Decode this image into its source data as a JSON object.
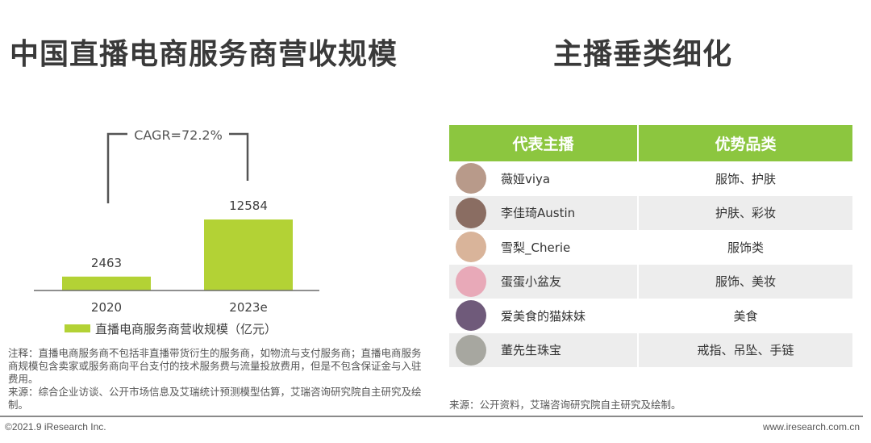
{
  "left_title": "中国直播电商服务商营收规模",
  "right_title": "主播垂类细化",
  "chart_data": {
    "type": "bar",
    "categories": [
      "2020",
      "2023e"
    ],
    "values": [
      2463,
      12584
    ],
    "data_labels": [
      "2463",
      "12584"
    ],
    "annotation": "CAGR=72.2%",
    "legend": "直播电商服务商营收规模（亿元）",
    "legend_placement": "bottom",
    "bar_color": "#b3d235",
    "ylim": [
      0,
      16000
    ],
    "grid": false
  },
  "note": "注释：直播电商服务商不包括非直播带货衍生的服务商，如物流与支付服务商；直播电商服务商规模包含卖家或服务商向平台支付的技术服务费与流量投放费用，但是不包含保证金与入驻费用。",
  "left_source": "来源：综合企业访谈、公开市场信息及艾瑞统计预测模型估算，艾瑞咨询研究院自主研究及绘制。",
  "table": {
    "headers": [
      "代表主播",
      "优势品类"
    ],
    "header_color": "#8cc63f",
    "rows": [
      {
        "name": "薇娅viya",
        "category": "服饰、护肤",
        "avatar_color": "#b89a8a"
      },
      {
        "name": "李佳琦Austin",
        "category": "护肤、彩妆",
        "avatar_color": "#8a6d62"
      },
      {
        "name": "雪梨_Cherie",
        "category": "服饰类",
        "avatar_color": "#d9b49a"
      },
      {
        "name": "蛋蛋小盆友",
        "category": "服饰、美妆",
        "avatar_color": "#e8a9b8"
      },
      {
        "name": "爱美食的猫妹妹",
        "category": "美食",
        "avatar_color": "#6f5a7a"
      },
      {
        "name": "董先生珠宝",
        "category": "戒指、吊坠、手链",
        "avatar_color": "#a7a7a0"
      }
    ]
  },
  "right_source": "来源：公开资料，艾瑞咨询研究院自主研究及绘制。",
  "footer": {
    "copyright": "©2021.9 iResearch Inc.",
    "website": "www.iresearch.com.cn"
  }
}
